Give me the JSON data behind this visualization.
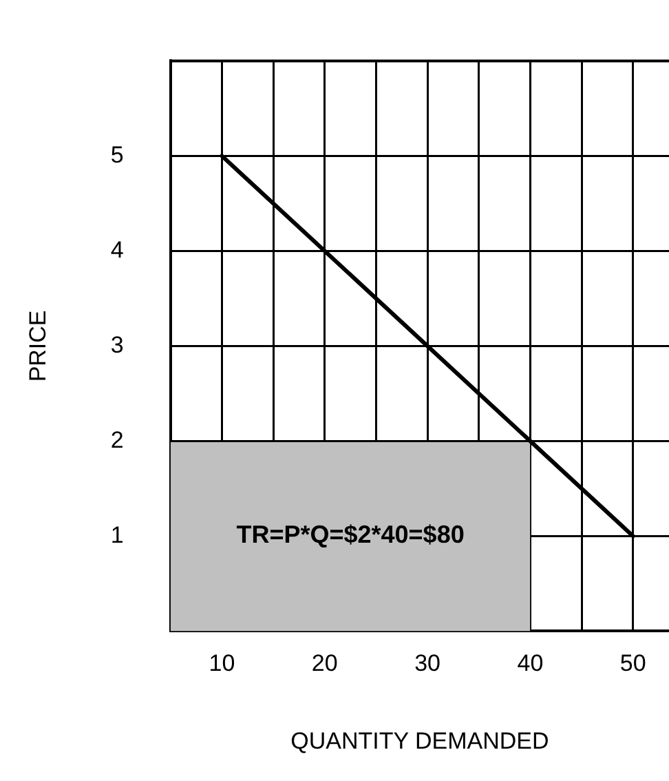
{
  "chart_data": {
    "type": "line",
    "xlabel": "QUANTITY DEMANDED",
    "ylabel": "PRICE",
    "series": [
      {
        "type": "line",
        "color": "#000000",
        "x": [
          10,
          50
        ],
        "values": [
          5,
          1
        ]
      },
      {
        "type": "area",
        "color": "#c0c0c0",
        "x": [
          5,
          40
        ],
        "values": [
          2,
          2
        ]
      }
    ],
    "xlim": [
      5,
      53.5
    ],
    "xticks": [
      10,
      {
        "value": 15,
        "label": null
      },
      20,
      {
        "value": 25,
        "label": null
      },
      30,
      {
        "value": 35,
        "label": null
      },
      40,
      {
        "value": 45,
        "label": null
      },
      50
    ],
    "ylim": [
      0,
      6
    ],
    "yticks": [
      1,
      2,
      3,
      4,
      5
    ],
    "grid": true,
    "legend": false,
    "marker": "none",
    "annotations": [
      "TR=P*Q=$2*40=$80"
    ]
  }
}
